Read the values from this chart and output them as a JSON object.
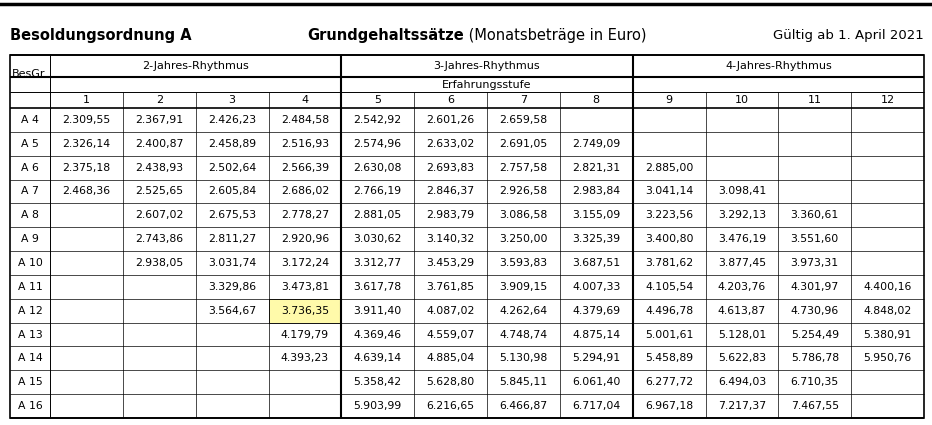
{
  "title_left": "Besoldungsordnung A",
  "title_center_bold": "Grundgehaltssätze",
  "title_center_normal": " (Monatsbeträge in Euro)",
  "title_right": "Gültig ab 1. April 2021",
  "col_header_rhythmus": [
    "2-Jahres-Rhythmus",
    "3-Jahres-Rhythmus",
    "4-Jahres-Rhythmus"
  ],
  "erfahrungsstufe_label": "Erfahrungsstufe",
  "besgr_label": "BesGr.",
  "stufe_cols": [
    "1",
    "2",
    "3",
    "4",
    "5",
    "6",
    "7",
    "8",
    "9",
    "10",
    "11",
    "12"
  ],
  "rows": [
    {
      "grade": "A 4",
      "vals": [
        "2.309,55",
        "2.367,91",
        "2.426,23",
        "2.484,58",
        "2.542,92",
        "2.601,26",
        "2.659,58",
        "",
        "",
        "",
        "",
        ""
      ]
    },
    {
      "grade": "A 5",
      "vals": [
        "2.326,14",
        "2.400,87",
        "2.458,89",
        "2.516,93",
        "2.574,96",
        "2.633,02",
        "2.691,05",
        "2.749,09",
        "",
        "",
        "",
        ""
      ]
    },
    {
      "grade": "A 6",
      "vals": [
        "2.375,18",
        "2.438,93",
        "2.502,64",
        "2.566,39",
        "2.630,08",
        "2.693,83",
        "2.757,58",
        "2.821,31",
        "2.885,00",
        "",
        "",
        ""
      ]
    },
    {
      "grade": "A 7",
      "vals": [
        "2.468,36",
        "2.525,65",
        "2.605,84",
        "2.686,02",
        "2.766,19",
        "2.846,37",
        "2.926,58",
        "2.983,84",
        "3.041,14",
        "3.098,41",
        "",
        ""
      ]
    },
    {
      "grade": "A 8",
      "vals": [
        "",
        "2.607,02",
        "2.675,53",
        "2.778,27",
        "2.881,05",
        "2.983,79",
        "3.086,58",
        "3.155,09",
        "3.223,56",
        "3.292,13",
        "3.360,61",
        ""
      ]
    },
    {
      "grade": "A 9",
      "vals": [
        "",
        "2.743,86",
        "2.811,27",
        "2.920,96",
        "3.030,62",
        "3.140,32",
        "3.250,00",
        "3.325,39",
        "3.400,80",
        "3.476,19",
        "3.551,60",
        ""
      ]
    },
    {
      "grade": "A 10",
      "vals": [
        "",
        "2.938,05",
        "3.031,74",
        "3.172,24",
        "3.312,77",
        "3.453,29",
        "3.593,83",
        "3.687,51",
        "3.781,62",
        "3.877,45",
        "3.973,31",
        ""
      ]
    },
    {
      "grade": "A 11",
      "vals": [
        "",
        "",
        "3.329,86",
        "3.473,81",
        "3.617,78",
        "3.761,85",
        "3.909,15",
        "4.007,33",
        "4.105,54",
        "4.203,76",
        "4.301,97",
        "4.400,16"
      ]
    },
    {
      "grade": "A 12",
      "vals": [
        "",
        "",
        "3.564,67",
        "3.736,35",
        "3.911,40",
        "4.087,02",
        "4.262,64",
        "4.379,69",
        "4.496,78",
        "4.613,87",
        "4.730,96",
        "4.848,02"
      ],
      "highlight_col": 3
    },
    {
      "grade": "A 13",
      "vals": [
        "",
        "",
        "",
        "4.179,79",
        "4.369,46",
        "4.559,07",
        "4.748,74",
        "4.875,14",
        "5.001,61",
        "5.128,01",
        "5.254,49",
        "5.380,91"
      ]
    },
    {
      "grade": "A 14",
      "vals": [
        "",
        "",
        "",
        "4.393,23",
        "4.639,14",
        "4.885,04",
        "5.130,98",
        "5.294,91",
        "5.458,89",
        "5.622,83",
        "5.786,78",
        "5.950,76"
      ]
    },
    {
      "grade": "A 15",
      "vals": [
        "",
        "",
        "",
        "",
        "5.358,42",
        "5.628,80",
        "5.845,11",
        "6.061,40",
        "6.277,72",
        "6.494,03",
        "6.710,35",
        ""
      ]
    },
    {
      "grade": "A 16",
      "vals": [
        "",
        "",
        "",
        "",
        "5.903,99",
        "6.216,65",
        "6.466,87",
        "6.717,04",
        "6.967,18",
        "7.217,37",
        "7.467,55",
        ""
      ]
    }
  ],
  "highlight_color": "#FFFAAA",
  "border_color": "#000000",
  "bg_color": "#FFFFFF",
  "text_color": "#000000",
  "title_fontsize": 10.5,
  "header_fontsize": 8.0,
  "data_fontsize": 7.8
}
